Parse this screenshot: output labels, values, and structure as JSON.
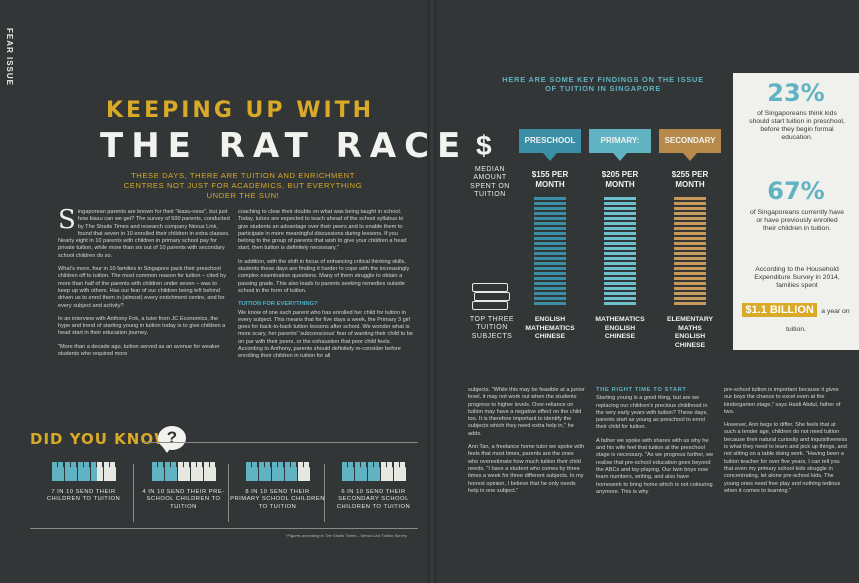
{
  "section_tag": "FEAR ISSUE",
  "headline": {
    "line1": "KEEPING UP WITH",
    "line2": "THE RAT RACE"
  },
  "deck": "THESE DAYS, THERE ARE TUITION AND ENRICHMENT CENTRES NOT JUST FOR ACADEMICS, BUT EVERYTHING UNDER THE SUN!",
  "article": {
    "dropcap": "S",
    "col1": [
      "ingaporean parents are known for their \"kiasu-ness\", but just how kiasu can we get? The survey of 500 parents, conducted by The Straits Times and research company Nexus Link, found that seven in 10 enrolled their children in extra classes. Nearly eight in 10 parents with children in primary school pay for private tuition, while more than six out of 10 parents with secondary school children do so.",
      "What's more, four in 10 families in Singapore pack their preschool children off to tuition. The most common reason for tuition – cited by more than half of the parents with children under seven – was to keep up with others. Has our fear of our children being left behind driven us to enrol them in (almost) every enrichment centre, and for every subject and activity?",
      "In an interview with Anthony Fok, a tutor from JC Economics, the hype and trend of starting young in tuition today is to give children a head start in their education journey.",
      "\"More than a decade ago, tuition served as an avenue for weaker students who required more"
    ],
    "col2": [
      "coaching to clear their doubts on what was being taught in school. Today, tutors are expected to teach ahead of the school syllabus to give students an advantage over their peers and to enable them to participate in more meaningful discussions during lessons. If you belong to the group of parents that wish to give your children a head start, then tuition is definitely necessary.\"",
      "In addition, with the shift in focus of enhancing critical thinking skills, students these days are finding it harder to cope with the increasingly complex examination questions. Many of them struggle to obtain a passing grade. This also leads to parents seeking remedies outside school in the form of tuition."
    ],
    "col2_subhead": "TUITION FOR EVERYTHING?",
    "col2b": "We know of one such parent who has enrolled her child for tuition in every subject. This means that for five days a week, the Primary 3 girl goes for back-to-back tuition lessons after school. We wonder what is more scary, her parents' 'subconscious' fear of wanting their child to be on par with their peers, or the exhaustion that poor child feels. According to Anthony, parents should definitely re-consider before enrolling their children in tuition for all",
    "col3": "subjects. \"While this may be feasible at a junior level, it may not work out when the students progress to higher levels. Over-reliance on tuition may have a negative effect on the child too. It is therefore important to identify the subjects which they need extra help in,\" he adds.",
    "col3b": "Ann Tan, a freelance home tutor we spoke with feels that most times, parents are the ones who overestimate how much tuition their child needs. \"I have a student who comes by three times a week for three different subjects. In my honest opinion, I believe that he only needs help in one subject.\"",
    "col4_subhead": "THE RIGHT TIME TO START",
    "col4": "Starting young is a good thing, but are we replacing our children's precious childhood in the very early years with tuition? These days, parents start as young as preschool to enrol their child for tuition.",
    "col4b": "A father we spoke with shares with us why he and his wife feel that tuition at the preschool stage is necessary. \"As we progress further, we realise that pre-school education goes beyond the ABCs and toy-playing. Our twin boys now learn numbers, writing, and also have homework to bring home which is not colouring anymore. This is why",
    "col5": "pre-school tuition is important because it gives our boys the chance to excel even at the kindergarten stage,\" says Haidi Abdul, father of two.",
    "col5b": "However, Ann begs to differ. She feels that at such a tender age, children do not need tuition because their natural curiosity and inquisitiveness is what they need to learn and pick up things, and not sitting on a table doing work. \"Having been a tuition teacher for over five years, I can tell you that even my primary school kids struggle in concentrating, let alone pre-school kids. The young ones need free play and nothing tedious when it comes to learning.\""
  },
  "did_you_know": {
    "title": "DID YOU KNOW?",
    "icon": "question-bubble-icon",
    "stats": [
      {
        "filled": 7,
        "total": 10,
        "text": "7 IN 10 SEND THEIR CHILDREN TO TUITION"
      },
      {
        "filled": 4,
        "total": 10,
        "text": "4 IN 10 SEND THEIR PRE-SCHOOL CHILDREN TO TUITION"
      },
      {
        "filled": 8,
        "total": 10,
        "text": "8 IN 10 SEND THEIR PRIMARY SCHOOL CHILDREN TO TUITION"
      },
      {
        "filled": 6,
        "total": 10,
        "text": "6 IN 10 SEND THEIR SECONDARY SCHOOL CHILDREN TO TUITION"
      }
    ],
    "footnote": "*Figures according to The Straits Times – Nexus Link Tuition Survey"
  },
  "infographic": {
    "title": "HERE ARE SOME KEY FINDINGS ON THE ISSUE OF TUITION IN SINGAPORE",
    "dollar_icon": "$",
    "median_label": "MEDIAN AMOUNT SPENT ON TUITION",
    "top_subjects_label": "TOP THREE TUITION SUBJECTS",
    "books_icon": "books-icon",
    "levels": [
      {
        "name": "PRESCHOOL",
        "price": "$155 PER MONTH",
        "color": "#3a8fa6",
        "stripe": "#3a8fa6",
        "subjects": [
          "ENGLISH",
          "MATHEMATICS",
          "CHINESE"
        ]
      },
      {
        "name": "PRIMARY:",
        "price": "$205 PER MONTH",
        "color": "#5fb3c2",
        "stripe": "#6fc0ce",
        "subjects": [
          "MATHEMATICS",
          "ENGLISH",
          "CHINESE"
        ]
      },
      {
        "name": "SECONDARY",
        "price": "$255 PER MONTH",
        "color": "#b7894a",
        "stripe": "#c7995a",
        "subjects": [
          "ELEMENTARY MATHS",
          "ENGLISH",
          "CHINESE"
        ]
      }
    ]
  },
  "sidebar": {
    "stat1_num": "23%",
    "stat1_text": "of Singaporeans think kids should start tuition in preschool, before they begin formal education.",
    "stat2_num": "67%",
    "stat2_text": "of Singaporeans currently have or have previously enrolled their children in tuition.",
    "stat3_text": "According to the Household Expenditure Survey in 2014, families spent",
    "stat3_highlight": "$1.1 BILLION",
    "stat3_tail": "a year on tuition."
  }
}
